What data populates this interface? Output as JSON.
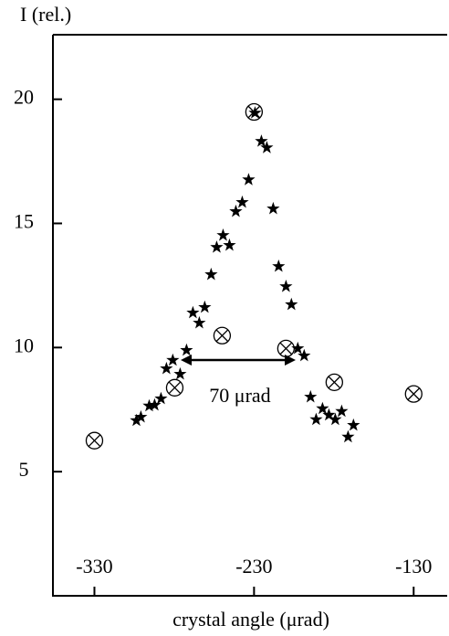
{
  "chart_data": {
    "type": "scatter",
    "y_label": "I (rel.)",
    "x_label": "crystal angle (μrad)",
    "annotation": "70 μrad",
    "xlim": [
      -356,
      -109
    ],
    "ylim": [
      0,
      22.6
    ],
    "xticks": [
      -330,
      -230,
      -130
    ],
    "yticks": [
      5,
      10,
      15,
      20
    ],
    "series": [
      {
        "name": "stars",
        "marker": "star",
        "color": "#000000",
        "x": [
          -303.7,
          -300.9,
          -295.7,
          -292.3,
          -288.3,
          -284.9,
          -280.9,
          -276.3,
          -272.3,
          -268.3,
          -264.3,
          -260.9,
          -256.9,
          -253.4,
          -249.4,
          -245.4,
          -241.4,
          -237.4,
          -233.4,
          -229.4,
          -225.4,
          -222,
          -218,
          -214.6,
          -210,
          -206.6,
          -202.6,
          -198.6,
          -194.6,
          -191.1,
          -187.1,
          -183.1,
          -179.1,
          -175.1,
          -171.1,
          -167.7
        ],
        "values": [
          7.06,
          7.2,
          7.65,
          7.68,
          7.94,
          9.15,
          9.49,
          8.93,
          9.89,
          11.4,
          10.99,
          11.62,
          12.94,
          14.04,
          14.52,
          14.12,
          15.48,
          15.85,
          16.76,
          19.45,
          18.31,
          18.05,
          15.59,
          13.27,
          12.46,
          11.73,
          9.96,
          9.67,
          8.01,
          7.1,
          7.54,
          7.28,
          7.1,
          7.43,
          6.4,
          6.87
        ]
      },
      {
        "name": "circles",
        "marker": "circle-cross",
        "color": "#000000",
        "x": [
          -330,
          -279.7,
          -250,
          -230,
          -210,
          -179.7,
          -130
        ],
        "values": [
          6.25,
          8.38,
          10.48,
          19.49,
          9.96,
          8.6,
          8.13
        ]
      }
    ]
  }
}
